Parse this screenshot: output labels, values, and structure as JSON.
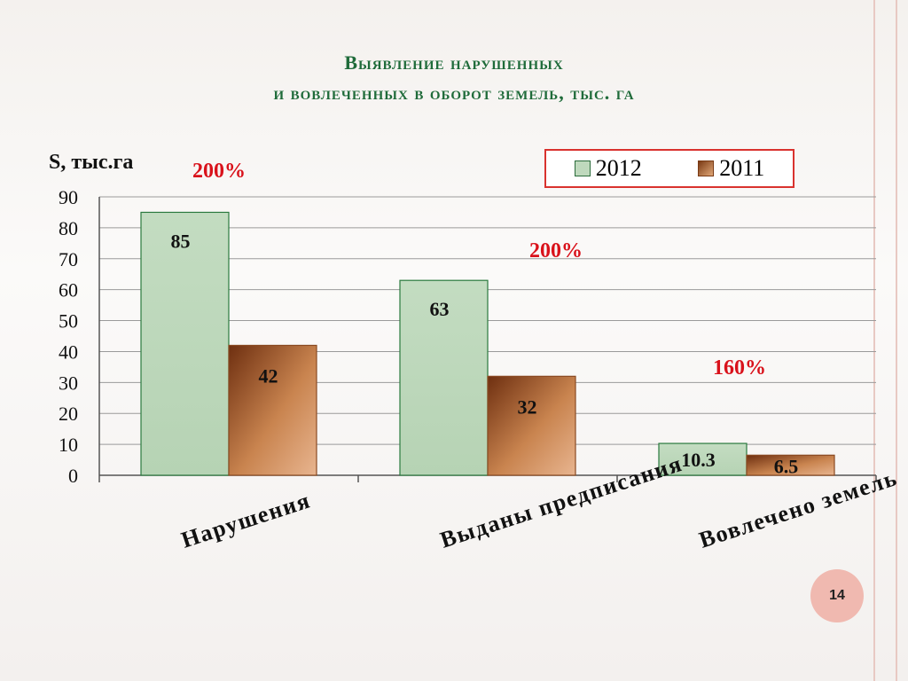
{
  "title": {
    "line1": "Выявление нарушенных",
    "line2": "и вовлеченных в оборот земель, тыс. га"
  },
  "page_number": "14",
  "chart_data": {
    "type": "bar",
    "ylabel": "S, тыс.га",
    "ylim": [
      0,
      90
    ],
    "yticks": [
      0,
      10,
      20,
      30,
      40,
      50,
      60,
      70,
      80,
      90
    ],
    "categories": [
      "Нарушения",
      "Выданы предписания",
      "Вовлечено земель"
    ],
    "series": [
      {
        "name": "2012",
        "values": [
          85,
          63,
          10.3
        ],
        "labels": [
          "85",
          "63",
          "10.3"
        ],
        "color": "#bfd9bd"
      },
      {
        "name": "2011",
        "values": [
          42,
          32,
          6.5
        ],
        "labels": [
          "42",
          "32",
          "6.5"
        ],
        "color": "#b86a3a"
      }
    ],
    "annotations": [
      "200%",
      "200%",
      "160%"
    ],
    "annotation_color": "#d9121b",
    "grid": true,
    "legend_position": "top-right"
  }
}
